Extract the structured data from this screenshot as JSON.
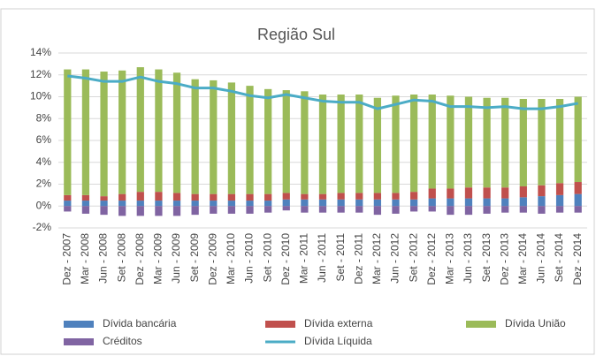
{
  "chart_data": {
    "type": "bar",
    "stacked": true,
    "title": "Região Sul",
    "categories": [
      "Dez - 2007",
      "Mar - 2008",
      "Jun - 2008",
      "Set - 2008",
      "Dez - 2008",
      "Mar - 2009",
      "Jun - 2009",
      "Set - 2009",
      "Dez - 2009",
      "Mar - 2010",
      "Jun - 2010",
      "Set - 2010",
      "Dez - 2010",
      "Mar - 2011",
      "Jun - 2011",
      "Set - 2011",
      "Dez - 2011",
      "Mar - 2012",
      "Jun - 2012",
      "Set - 2012",
      "Dez - 2012",
      "Mar - 2013",
      "Jun - 2013",
      "Set - 2013",
      "Dez - 2013",
      "Mar - 2014",
      "Jun - 2014",
      "Set - 2014",
      "Dez - 2014"
    ],
    "series": [
      {
        "name": "Dívida bancária",
        "type": "bar",
        "color": "#4f81bd",
        "values": [
          0.5,
          0.5,
          0.5,
          0.5,
          0.5,
          0.5,
          0.5,
          0.5,
          0.5,
          0.5,
          0.5,
          0.5,
          0.6,
          0.6,
          0.6,
          0.6,
          0.6,
          0.6,
          0.6,
          0.6,
          0.7,
          0.7,
          0.7,
          0.7,
          0.7,
          0.8,
          0.9,
          1.0,
          1.1
        ]
      },
      {
        "name": "Dívida externa",
        "type": "bar",
        "color": "#c0504d",
        "values": [
          0.5,
          0.5,
          0.4,
          0.6,
          0.8,
          0.8,
          0.7,
          0.6,
          0.6,
          0.6,
          0.6,
          0.6,
          0.6,
          0.5,
          0.5,
          0.6,
          0.6,
          0.6,
          0.6,
          0.7,
          0.9,
          0.9,
          1.0,
          1.0,
          1.0,
          1.0,
          1.0,
          1.1,
          1.1
        ]
      },
      {
        "name": "Dívida União",
        "type": "bar",
        "color": "#9bbb59",
        "values": [
          11.5,
          11.5,
          11.4,
          11.3,
          11.4,
          11.2,
          11.0,
          10.5,
          10.4,
          10.2,
          9.9,
          9.6,
          9.4,
          9.4,
          9.1,
          9.0,
          9.0,
          8.7,
          8.9,
          8.9,
          8.6,
          8.5,
          8.3,
          8.2,
          8.2,
          8.0,
          7.9,
          7.7,
          7.8
        ]
      },
      {
        "name": "Créditos",
        "type": "bar",
        "color": "#8064a2",
        "values": [
          -0.5,
          -0.7,
          -0.8,
          -0.9,
          -0.9,
          -0.9,
          -0.9,
          -0.8,
          -0.7,
          -0.7,
          -0.7,
          -0.6,
          -0.4,
          -0.6,
          -0.6,
          -0.6,
          -0.6,
          -0.8,
          -0.7,
          -0.5,
          -0.5,
          -0.8,
          -0.8,
          -0.7,
          -0.6,
          -0.6,
          -0.7,
          -0.6,
          -0.6
        ]
      },
      {
        "name": "Dívida Líquida",
        "type": "line",
        "color": "#4bacc6",
        "values": [
          11.9,
          11.7,
          11.4,
          11.4,
          11.8,
          11.4,
          11.2,
          10.8,
          10.8,
          10.5,
          10.1,
          9.9,
          10.2,
          9.9,
          9.6,
          9.5,
          9.5,
          8.9,
          9.3,
          9.7,
          9.6,
          9.1,
          9.1,
          9.0,
          9.1,
          8.9,
          8.9,
          9.1,
          9.4
        ]
      }
    ],
    "ylim": [
      -2,
      14
    ],
    "yticks": [
      {
        "value": -2,
        "label": "-2%"
      },
      {
        "value": 0,
        "label": "0%"
      },
      {
        "value": 2,
        "label": "2%"
      },
      {
        "value": 4,
        "label": "4%"
      },
      {
        "value": 6,
        "label": "6%"
      },
      {
        "value": 8,
        "label": "8%"
      },
      {
        "value": 10,
        "label": "10%"
      },
      {
        "value": 12,
        "label": "12%"
      },
      {
        "value": 14,
        "label": "14%"
      }
    ],
    "grid": true,
    "legend": "bottom"
  }
}
